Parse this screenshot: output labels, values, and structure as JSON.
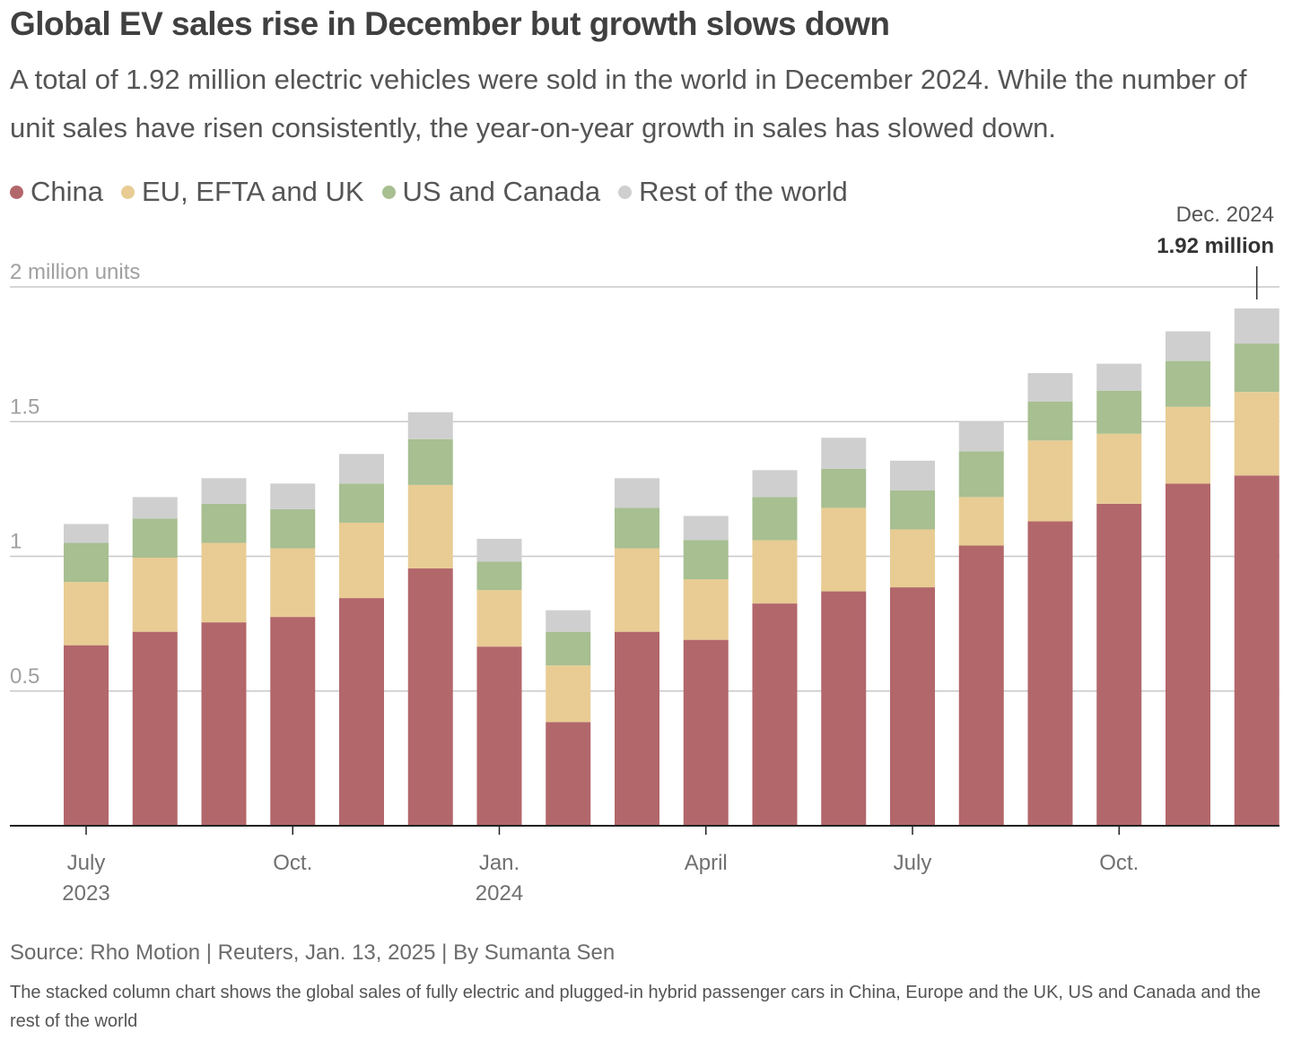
{
  "header": {
    "title": "Global EV sales rise in December but growth slows down",
    "subtitle": "A total of 1.92 million electric vehicles were sold in the world in December 2024. While the number of unit sales have risen consistently, the year-on-year growth in sales has slowed down."
  },
  "footer": {
    "source": "Source: Rho Motion | Reuters, Jan. 13, 2025 | By Sumanta Sen",
    "note": "The stacked column chart shows the global sales of fully electric and plugged-in hybrid passenger cars in China, Europe and the UK, US and Canada and the rest of the world"
  },
  "chart_data": {
    "type": "bar",
    "stacked": true,
    "unit_label": "2 million units",
    "ylim": [
      0,
      2
    ],
    "y_ticks": [
      {
        "value": 0.5,
        "label": "0.5"
      },
      {
        "value": 1,
        "label": "1"
      },
      {
        "value": 1.5,
        "label": "1.5"
      },
      {
        "value": 2,
        "label": "2 million units"
      }
    ],
    "grid": true,
    "legend_position": "top-left",
    "categories": [
      "2023-07",
      "2023-08",
      "2023-09",
      "2023-10",
      "2023-11",
      "2023-12",
      "2024-01",
      "2024-02",
      "2024-03",
      "2024-04",
      "2024-05",
      "2024-06",
      "2024-07",
      "2024-08",
      "2024-09",
      "2024-10",
      "2024-11",
      "2024-12"
    ],
    "x_tick_labels": [
      {
        "index": 0,
        "lines": [
          "July",
          "2023"
        ]
      },
      {
        "index": 3,
        "lines": [
          "Oct."
        ]
      },
      {
        "index": 6,
        "lines": [
          "Jan.",
          "2024"
        ]
      },
      {
        "index": 9,
        "lines": [
          "April"
        ]
      },
      {
        "index": 12,
        "lines": [
          "July"
        ]
      },
      {
        "index": 15,
        "lines": [
          "Oct."
        ]
      }
    ],
    "series": [
      {
        "name": "China",
        "color": "#b2676b",
        "values": [
          0.67,
          0.72,
          0.755,
          0.775,
          0.845,
          0.955,
          0.665,
          0.385,
          0.72,
          0.69,
          0.825,
          0.87,
          0.885,
          1.04,
          1.13,
          1.195,
          1.27,
          1.3
        ]
      },
      {
        "name": "EU, EFTA and UK",
        "color": "#e8cc93",
        "values": [
          0.235,
          0.275,
          0.295,
          0.255,
          0.28,
          0.31,
          0.21,
          0.21,
          0.31,
          0.225,
          0.235,
          0.31,
          0.215,
          0.18,
          0.3,
          0.26,
          0.285,
          0.31
        ]
      },
      {
        "name": "US and Canada",
        "color": "#a7bf91",
        "values": [
          0.145,
          0.145,
          0.145,
          0.145,
          0.145,
          0.17,
          0.105,
          0.125,
          0.15,
          0.145,
          0.16,
          0.145,
          0.145,
          0.17,
          0.145,
          0.16,
          0.17,
          0.18
        ]
      },
      {
        "name": "Rest of the world",
        "color": "#cfcfcf",
        "values": [
          0.07,
          0.08,
          0.095,
          0.095,
          0.11,
          0.1,
          0.085,
          0.08,
          0.11,
          0.09,
          0.1,
          0.115,
          0.11,
          0.11,
          0.105,
          0.1,
          0.11,
          0.13
        ]
      }
    ],
    "annotation": {
      "index": 17,
      "label": "Dec. 2024",
      "value_label": "1.92 million"
    },
    "colors": {
      "axis": "#222222",
      "grid": "#c8c8c8",
      "tick_text": "#a0a0a0",
      "x_tick_text": "#707070"
    }
  }
}
